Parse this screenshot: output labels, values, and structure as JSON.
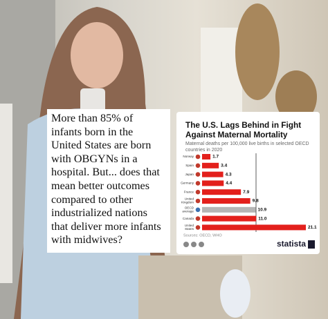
{
  "post_text": "More than 85% of infants born in the United States are born with OBGYNs in a hospital. But... does that mean better outcomes compared to other industrialized nations that deliver more infants with midwives?",
  "chart_data": {
    "type": "bar",
    "orientation": "horizontal",
    "title": "The U.S. Lags Behind in Fight Against Maternal Mortality",
    "subtitle": "Maternal deaths per 100,000 live births in selected OECD countries in 2020",
    "categories": [
      "Norway",
      "Spain",
      "Japan",
      "Germany",
      "France",
      "United Kingdom",
      "OECD average",
      "Canada",
      "United States"
    ],
    "values": [
      1.7,
      3.4,
      4.3,
      4.4,
      7.9,
      9.8,
      10.9,
      11.0,
      21.1
    ],
    "value_labels": [
      "1.7",
      "3.4",
      "4.3",
      "4.4",
      "7.9",
      "9.8",
      "10.9",
      "11.0",
      "21.1"
    ],
    "colors": [
      "#e3201c",
      "#e3201c",
      "#e3201c",
      "#e3201c",
      "#e3201c",
      "#e3201c",
      "#b5b5b5",
      "#e3201c",
      "#e3201c"
    ],
    "source": "Sources: OECD, WHO",
    "brand": "statista"
  }
}
